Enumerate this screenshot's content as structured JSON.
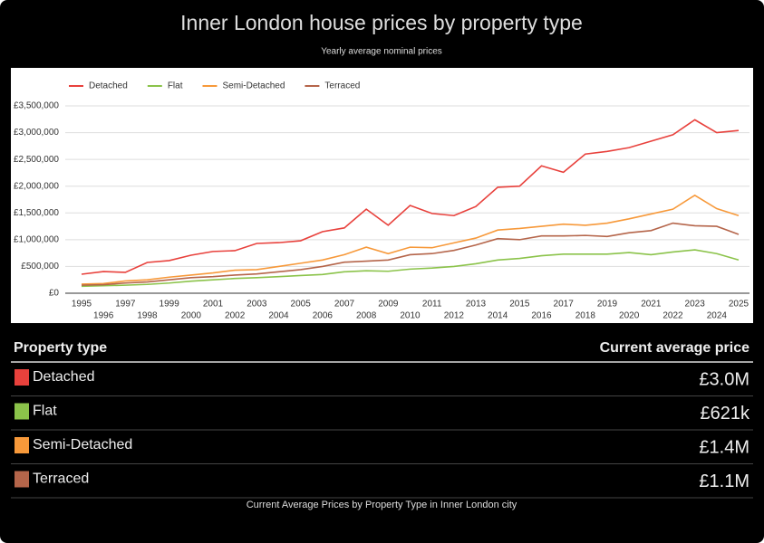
{
  "header": {
    "title": "Inner London house prices by property type",
    "subtitle": "Yearly average nominal prices"
  },
  "chart_data": {
    "type": "line",
    "legend": "top-left",
    "grid": true,
    "x": [
      1995,
      1996,
      1997,
      1998,
      1999,
      2000,
      2001,
      2002,
      2003,
      2004,
      2005,
      2006,
      2007,
      2008,
      2009,
      2010,
      2011,
      2012,
      2013,
      2014,
      2015,
      2016,
      2017,
      2018,
      2019,
      2020,
      2021,
      2022,
      2023,
      2024,
      2025
    ],
    "xlim": [
      1995,
      2025
    ],
    "ylim": [
      0,
      3500000
    ],
    "yticks": [
      {
        "value": 0,
        "label": "£0"
      },
      {
        "value": 500000,
        "label": "£500,000"
      },
      {
        "value": 1000000,
        "label": "£1,000,000"
      },
      {
        "value": 1500000,
        "label": "£1,500,000"
      },
      {
        "value": 2000000,
        "label": "£2,000,000"
      },
      {
        "value": 2500000,
        "label": "£2,500,000"
      },
      {
        "value": 3000000,
        "label": "£3,000,000"
      },
      {
        "value": 3500000,
        "label": "£3,500,000"
      }
    ],
    "series": [
      {
        "name": "Detached",
        "color": "#e8413c",
        "values": [
          355000,
          405000,
          390000,
          575000,
          610000,
          710000,
          780000,
          795000,
          930000,
          945000,
          980000,
          1150000,
          1220000,
          1570000,
          1270000,
          1640000,
          1490000,
          1450000,
          1620000,
          1980000,
          2000000,
          2380000,
          2260000,
          2600000,
          2650000,
          2720000,
          2840000,
          2960000,
          3240000,
          3000000,
          3040000
        ]
      },
      {
        "name": "Flat",
        "color": "#8bc34a",
        "values": [
          130000,
          140000,
          150000,
          165000,
          190000,
          225000,
          250000,
          275000,
          290000,
          310000,
          330000,
          350000,
          400000,
          420000,
          410000,
          450000,
          470000,
          500000,
          550000,
          620000,
          650000,
          700000,
          730000,
          730000,
          730000,
          760000,
          720000,
          770000,
          810000,
          740000,
          621000
        ]
      },
      {
        "name": "Semi-Detached",
        "color": "#f7993a",
        "values": [
          170000,
          180000,
          230000,
          250000,
          300000,
          340000,
          380000,
          430000,
          440000,
          500000,
          560000,
          620000,
          720000,
          860000,
          740000,
          860000,
          850000,
          940000,
          1030000,
          1180000,
          1210000,
          1250000,
          1290000,
          1270000,
          1310000,
          1390000,
          1480000,
          1570000,
          1830000,
          1580000,
          1450000
        ]
      },
      {
        "name": "Terraced",
        "color": "#b5654a",
        "values": [
          150000,
          160000,
          190000,
          210000,
          250000,
          290000,
          310000,
          340000,
          360000,
          400000,
          440000,
          500000,
          580000,
          600000,
          620000,
          720000,
          740000,
          800000,
          900000,
          1020000,
          1000000,
          1070000,
          1070000,
          1080000,
          1060000,
          1130000,
          1170000,
          1310000,
          1260000,
          1250000,
          1100000
        ]
      }
    ]
  },
  "table": {
    "columns": [
      "Property type",
      "Current average price"
    ],
    "rows": [
      [
        "Detached",
        "£3.0M"
      ],
      [
        "Flat",
        "£621k"
      ],
      [
        "Semi-Detached",
        "£1.4M"
      ],
      [
        "Terraced",
        "£1.1M"
      ]
    ]
  },
  "footer": {
    "caption": "Current Average Prices by Property Type in Inner London city"
  }
}
